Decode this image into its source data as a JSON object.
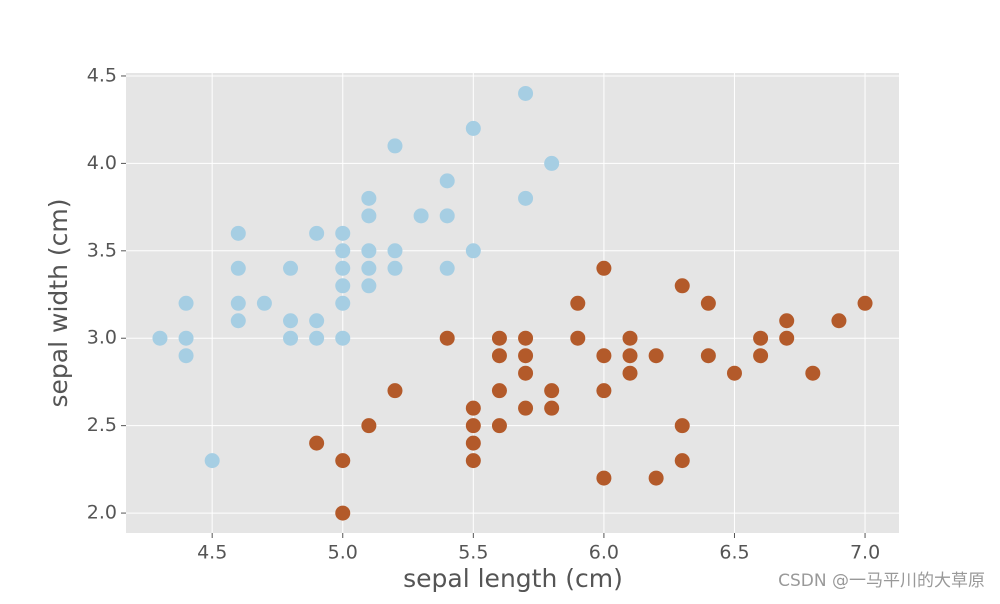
{
  "chart_data": {
    "type": "scatter",
    "xlabel": "sepal length (cm)",
    "ylabel": "sepal width (cm)",
    "watermark": "CSDN @一马平川的大草原",
    "xlim": [
      4.17,
      7.13
    ],
    "ylim": [
      1.886,
      4.517
    ],
    "xticks": [
      4.5,
      {
        "value": 5,
        "label": "5.0"
      },
      5.5,
      {
        "value": 6,
        "label": "6.0"
      },
      6.5,
      {
        "value": 7,
        "label": "7.0"
      }
    ],
    "yticks": [
      {
        "value": 2,
        "label": "2.0"
      },
      2.5,
      {
        "value": 3,
        "label": "3.0"
      },
      3.5,
      {
        "value": 4,
        "label": "4.0"
      },
      4.5
    ],
    "grid": true,
    "background": "#e5e5e5",
    "series": [
      {
        "color": "#a6cee3",
        "x": [
          4.3,
          4.4,
          4.4,
          4.4,
          4.5,
          4.6,
          4.6,
          4.6,
          4.6,
          4.7,
          4.8,
          4.8,
          4.8,
          4.9,
          4.9,
          4.9,
          5.0,
          5.0,
          5.0,
          5.0,
          5.0,
          5.0,
          5.1,
          5.1,
          5.1,
          5.1,
          5.1,
          5.2,
          5.2,
          5.2,
          5.3,
          5.4,
          5.4,
          5.4,
          5.5,
          5.5,
          5.7,
          5.7,
          5.8
        ],
        "values": [
          3.0,
          3.2,
          3.0,
          2.9,
          2.3,
          3.6,
          3.4,
          3.2,
          3.1,
          3.2,
          3.4,
          3.1,
          3.0,
          3.6,
          3.1,
          3.0,
          3.6,
          3.5,
          3.4,
          3.3,
          3.2,
          3.0,
          3.8,
          3.7,
          3.5,
          3.4,
          3.3,
          4.1,
          3.5,
          3.4,
          3.7,
          3.9,
          3.7,
          3.4,
          4.2,
          3.5,
          4.4,
          3.8,
          4.0
        ]
      },
      {
        "color": "#b35a2a",
        "x": [
          4.9,
          5.0,
          5.0,
          5.1,
          5.2,
          5.4,
          5.5,
          5.5,
          5.5,
          5.5,
          5.6,
          5.6,
          5.6,
          5.6,
          5.7,
          5.7,
          5.7,
          5.7,
          5.8,
          5.8,
          5.9,
          5.9,
          6.0,
          6.0,
          6.0,
          6.0,
          6.1,
          6.1,
          6.1,
          6.2,
          6.2,
          6.3,
          6.3,
          6.3,
          6.4,
          6.4,
          6.5,
          6.6,
          6.6,
          6.7,
          6.7,
          6.8,
          6.9,
          7.0
        ],
        "values": [
          2.4,
          2.3,
          2.0,
          2.5,
          2.7,
          3.0,
          2.6,
          2.5,
          2.4,
          2.3,
          3.0,
          2.9,
          2.7,
          2.5,
          3.0,
          2.9,
          2.8,
          2.6,
          2.7,
          2.6,
          3.2,
          3.0,
          3.4,
          2.9,
          2.7,
          2.2,
          3.0,
          2.9,
          2.8,
          2.9,
          2.2,
          3.3,
          2.5,
          2.3,
          3.2,
          2.9,
          2.8,
          3.0,
          2.9,
          3.1,
          3.0,
          2.8,
          3.1,
          3.2
        ]
      }
    ]
  }
}
